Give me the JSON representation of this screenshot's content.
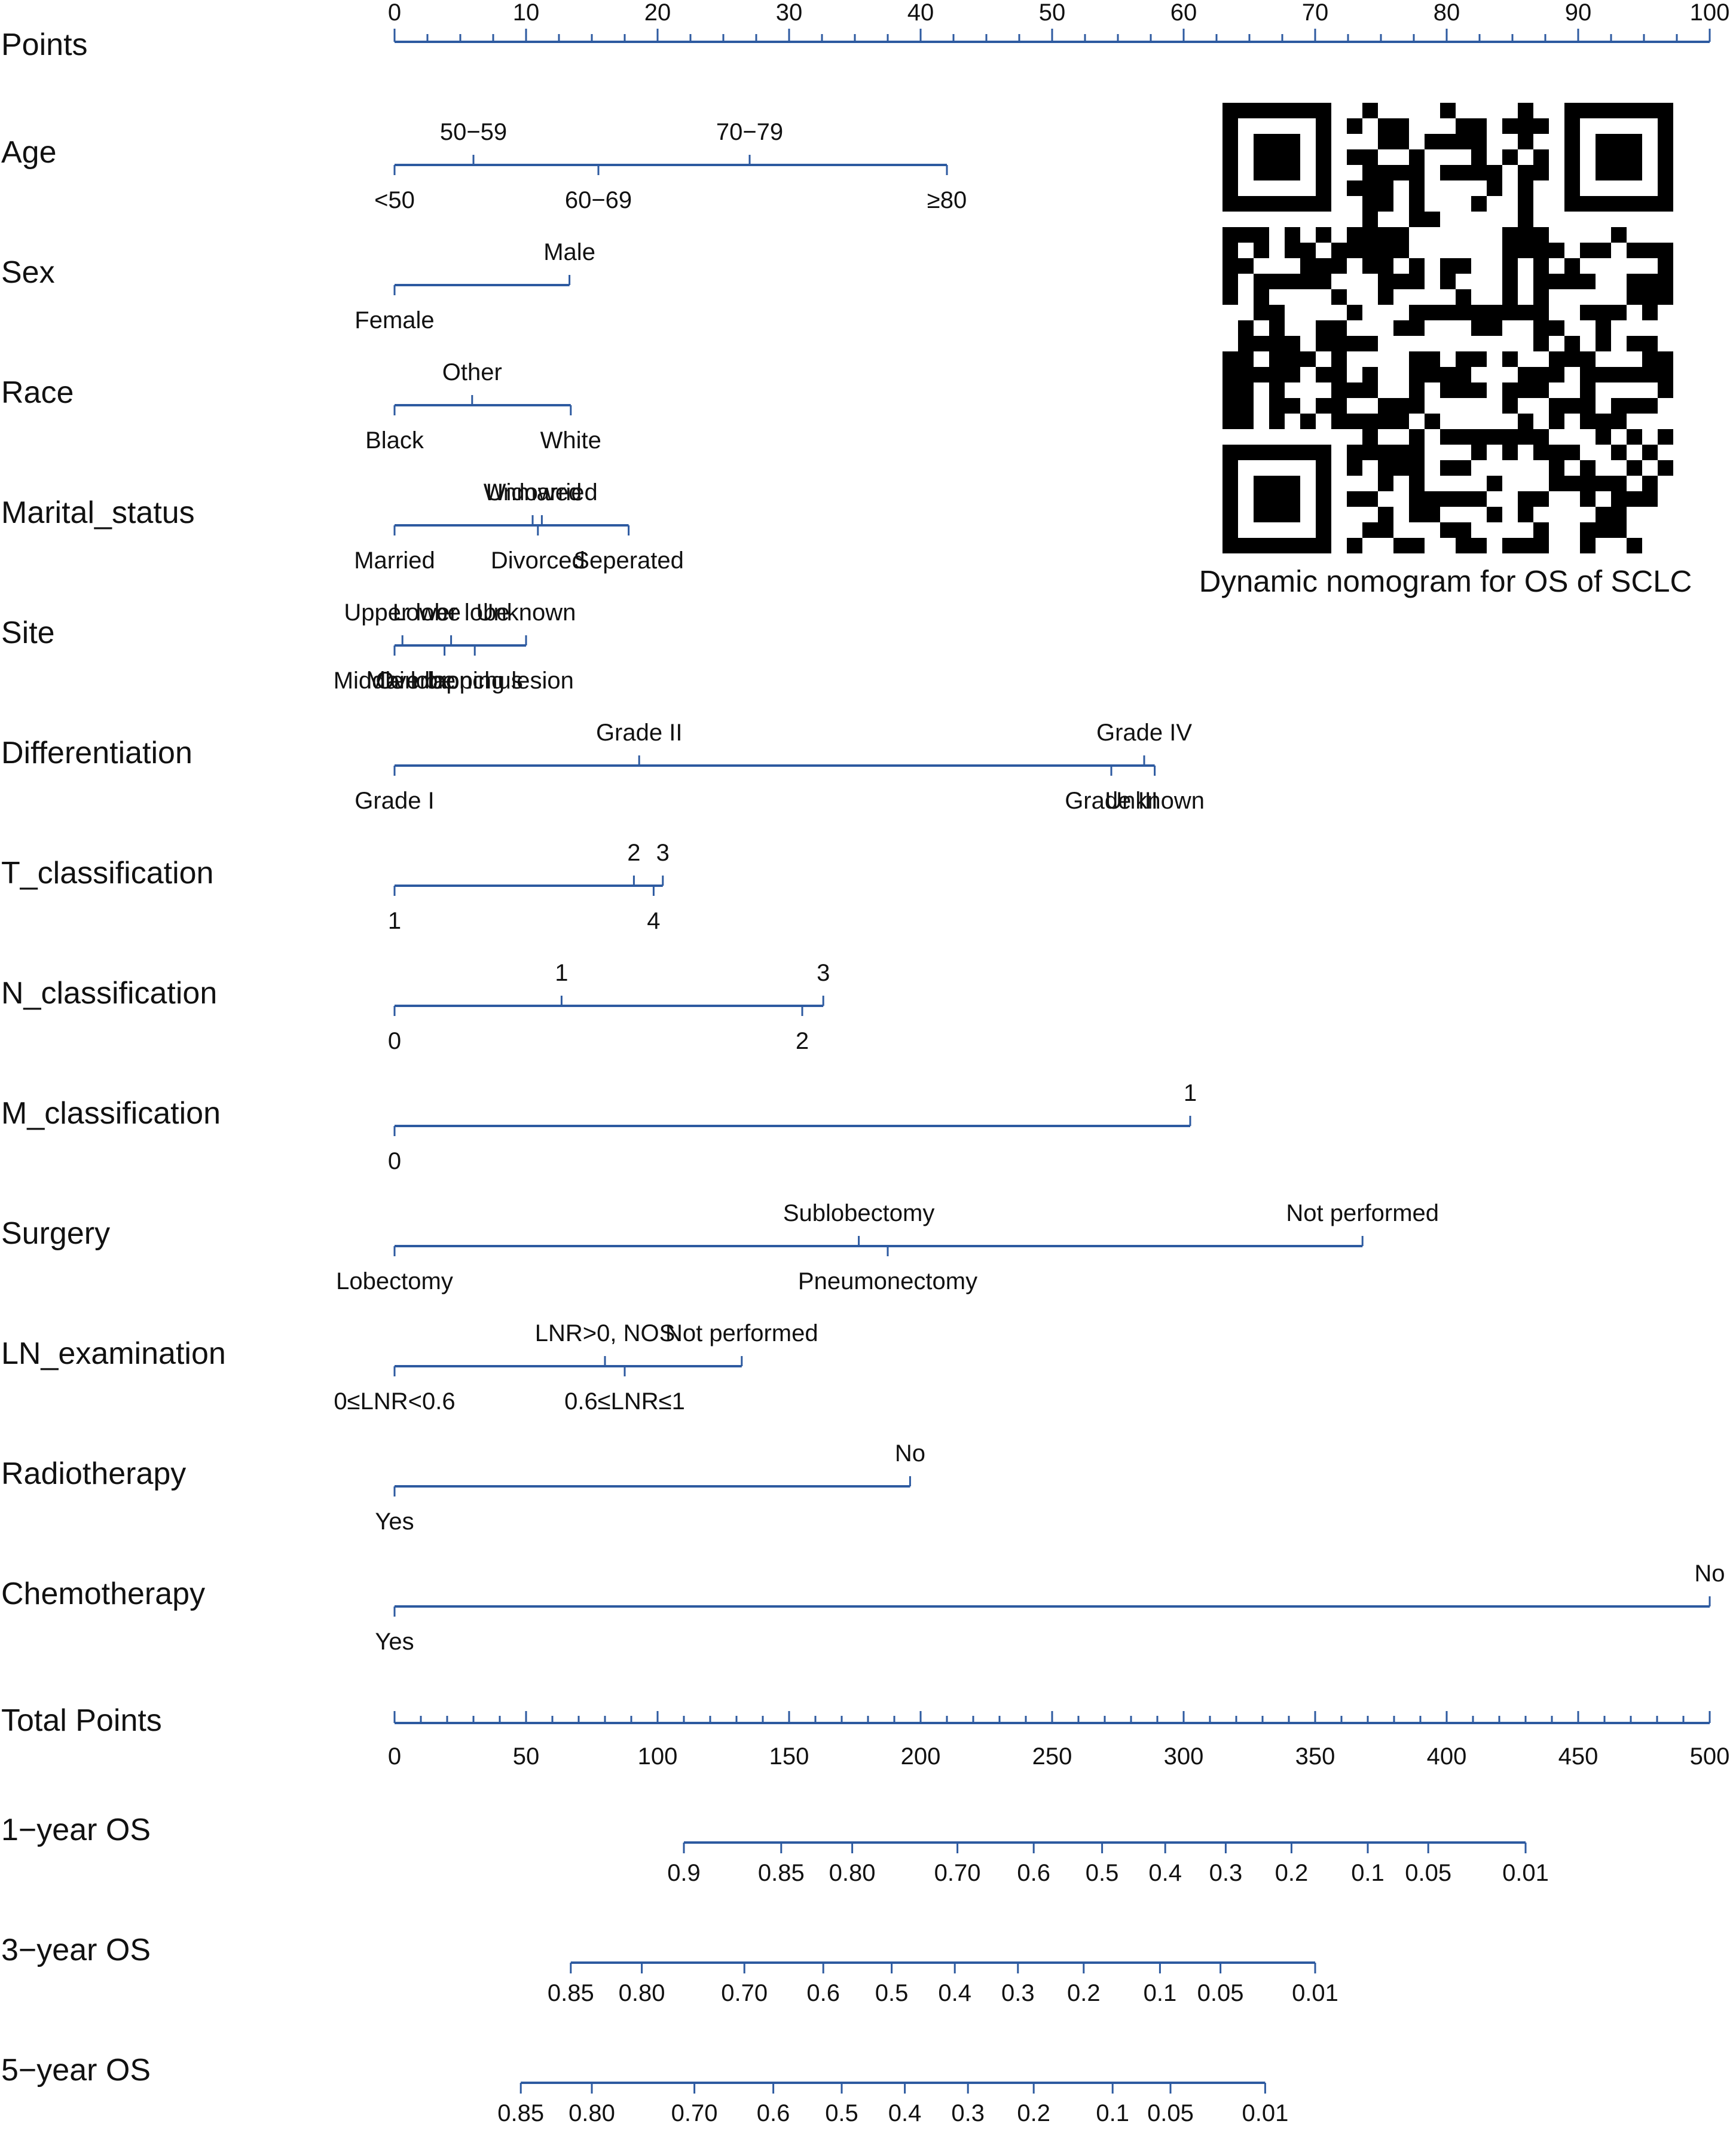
{
  "colors": {
    "axis": "#2d5aa0",
    "text": "#111111",
    "qr": "#000000"
  },
  "qr_caption": "Dynamic nomogram for OS of SCLC",
  "chart_data": {
    "type": "nomogram",
    "points_axis": {
      "label": "Points",
      "range": [
        0,
        100
      ],
      "ticks": [
        0,
        10,
        20,
        30,
        40,
        50,
        60,
        70,
        80,
        90,
        100
      ],
      "tick_labels": [
        "0",
        "10",
        "20",
        "30",
        "40",
        "50",
        "60",
        "70",
        "80",
        "90",
        "100"
      ],
      "minor_step": 2.5
    },
    "variables": [
      {
        "name": "Age",
        "levels": [
          {
            "label": "<50",
            "points": 0,
            "side": "below"
          },
          {
            "label": "50−59",
            "points": 6,
            "side": "above"
          },
          {
            "label": "60−69",
            "points": 15.5,
            "side": "below"
          },
          {
            "label": "70−79",
            "points": 27,
            "side": "above"
          },
          {
            "label": "≥80",
            "points": 42,
            "side": "below"
          }
        ]
      },
      {
        "name": "Sex",
        "levels": [
          {
            "label": "Female",
            "points": 0,
            "side": "below"
          },
          {
            "label": "Male",
            "points": 13.3,
            "side": "above"
          }
        ]
      },
      {
        "name": "Race",
        "levels": [
          {
            "label": "Black",
            "points": 0,
            "side": "below"
          },
          {
            "label": "Other",
            "points": 5.9,
            "side": "above"
          },
          {
            "label": "White",
            "points": 13.4,
            "side": "below"
          }
        ]
      },
      {
        "name": "Marital_status",
        "levels": [
          {
            "label": "Married",
            "points": 0,
            "side": "below"
          },
          {
            "label": "Widowed",
            "points": 10.5,
            "side": "above"
          },
          {
            "label": "Unmarried",
            "points": 11.2,
            "side": "above"
          },
          {
            "label": "Divorced",
            "points": 10.9,
            "side": "below"
          },
          {
            "label": "Seperated",
            "points": 17.8,
            "side": "below"
          }
        ]
      },
      {
        "name": "Site",
        "levels": [
          {
            "label": "Middle lobe",
            "points": 0,
            "side": "below"
          },
          {
            "label": "Upper lobe",
            "points": 0.6,
            "side": "above"
          },
          {
            "label": "Main bronchus",
            "points": 3.8,
            "side": "below"
          },
          {
            "label": "Lower lobe",
            "points": 4.3,
            "side": "above"
          },
          {
            "label": "Overlapping lesion",
            "points": 6.1,
            "side": "below"
          },
          {
            "label": "Unknown",
            "points": 10,
            "side": "above"
          }
        ]
      },
      {
        "name": "Differentiation",
        "levels": [
          {
            "label": "Grade I",
            "points": 0,
            "side": "below"
          },
          {
            "label": "Grade II",
            "points": 18.6,
            "side": "above"
          },
          {
            "label": "Grade III",
            "points": 54.5,
            "side": "below"
          },
          {
            "label": "Grade IV",
            "points": 57,
            "side": "above"
          },
          {
            "label": "Unknown",
            "points": 57.8,
            "side": "below"
          }
        ]
      },
      {
        "name": "T_classification",
        "levels": [
          {
            "label": "1",
            "points": 0,
            "side": "below"
          },
          {
            "label": "2",
            "points": 18.2,
            "side": "above"
          },
          {
            "label": "4",
            "points": 19.7,
            "side": "below"
          },
          {
            "label": "3",
            "points": 20.4,
            "side": "above"
          }
        ]
      },
      {
        "name": "N_classification",
        "levels": [
          {
            "label": "0",
            "points": 0,
            "side": "below"
          },
          {
            "label": "1",
            "points": 12.7,
            "side": "above"
          },
          {
            "label": "2",
            "points": 31,
            "side": "below"
          },
          {
            "label": "3",
            "points": 32.6,
            "side": "above"
          }
        ]
      },
      {
        "name": "M_classification",
        "levels": [
          {
            "label": "0",
            "points": 0,
            "side": "below"
          },
          {
            "label": "1",
            "points": 60.5,
            "side": "above"
          }
        ]
      },
      {
        "name": "Surgery",
        "levels": [
          {
            "label": "Lobectomy",
            "points": 0,
            "side": "below"
          },
          {
            "label": "Sublobectomy",
            "points": 35.3,
            "side": "above"
          },
          {
            "label": "Pneumonectomy",
            "points": 37.5,
            "side": "below"
          },
          {
            "label": "Not performed",
            "points": 73.6,
            "side": "above"
          }
        ]
      },
      {
        "name": "LN_examination",
        "levels": [
          {
            "label": "0≤LNR<0.6",
            "points": 0,
            "side": "below"
          },
          {
            "label": "LNR>0, NOS",
            "points": 16,
            "side": "above"
          },
          {
            "label": "0.6≤LNR≤1",
            "points": 17.5,
            "side": "below"
          },
          {
            "label": "Not performed",
            "points": 26.4,
            "side": "above"
          }
        ]
      },
      {
        "name": "Radiotherapy",
        "levels": [
          {
            "label": "Yes",
            "points": 0,
            "side": "below"
          },
          {
            "label": "No",
            "points": 39.2,
            "side": "above"
          }
        ]
      },
      {
        "name": "Chemotherapy",
        "levels": [
          {
            "label": "Yes",
            "points": 0,
            "side": "below"
          },
          {
            "label": "No",
            "points": 100,
            "side": "above"
          }
        ]
      }
    ],
    "total_points_axis": {
      "label": "Total Points",
      "range": [
        0,
        500
      ],
      "ticks": [
        0,
        50,
        100,
        150,
        200,
        250,
        300,
        350,
        400,
        450,
        500
      ],
      "tick_labels": [
        "0",
        "50",
        "100",
        "150",
        "200",
        "250",
        "300",
        "350",
        "400",
        "450",
        "500"
      ],
      "minor_step": 10
    },
    "probability_axes": [
      {
        "label": "1−year OS",
        "ticks": [
          {
            "label": "0.9",
            "total_points": 110
          },
          {
            "label": "0.85",
            "total_points": 147
          },
          {
            "label": "0.80",
            "total_points": 174
          },
          {
            "label": "0.70",
            "total_points": 214
          },
          {
            "label": "0.6",
            "total_points": 243
          },
          {
            "label": "0.5",
            "total_points": 269
          },
          {
            "label": "0.4",
            "total_points": 293
          },
          {
            "label": "0.3",
            "total_points": 316
          },
          {
            "label": "0.2",
            "total_points": 341
          },
          {
            "label": "0.1",
            "total_points": 370
          },
          {
            "label": "0.05",
            "total_points": 393
          },
          {
            "label": "0.01",
            "total_points": 430
          }
        ]
      },
      {
        "label": "3−year OS",
        "ticks": [
          {
            "label": "0.85",
            "total_points": 67
          },
          {
            "label": "0.80",
            "total_points": 94
          },
          {
            "label": "0.70",
            "total_points": 133
          },
          {
            "label": "0.6",
            "total_points": 163
          },
          {
            "label": "0.5",
            "total_points": 189
          },
          {
            "label": "0.4",
            "total_points": 213
          },
          {
            "label": "0.3",
            "total_points": 237
          },
          {
            "label": "0.2",
            "total_points": 262
          },
          {
            "label": "0.1",
            "total_points": 291
          },
          {
            "label": "0.05",
            "total_points": 314
          },
          {
            "label": "0.01",
            "total_points": 350
          }
        ]
      },
      {
        "label": "5−year OS",
        "ticks": [
          {
            "label": "0.85",
            "total_points": 48
          },
          {
            "label": "0.80",
            "total_points": 75
          },
          {
            "label": "0.70",
            "total_points": 114
          },
          {
            "label": "0.6",
            "total_points": 144
          },
          {
            "label": "0.5",
            "total_points": 170
          },
          {
            "label": "0.4",
            "total_points": 194
          },
          {
            "label": "0.3",
            "total_points": 218
          },
          {
            "label": "0.2",
            "total_points": 243
          },
          {
            "label": "0.1",
            "total_points": 273
          },
          {
            "label": "0.05",
            "total_points": 295
          },
          {
            "label": "0.01",
            "total_points": 331
          }
        ]
      }
    ]
  }
}
